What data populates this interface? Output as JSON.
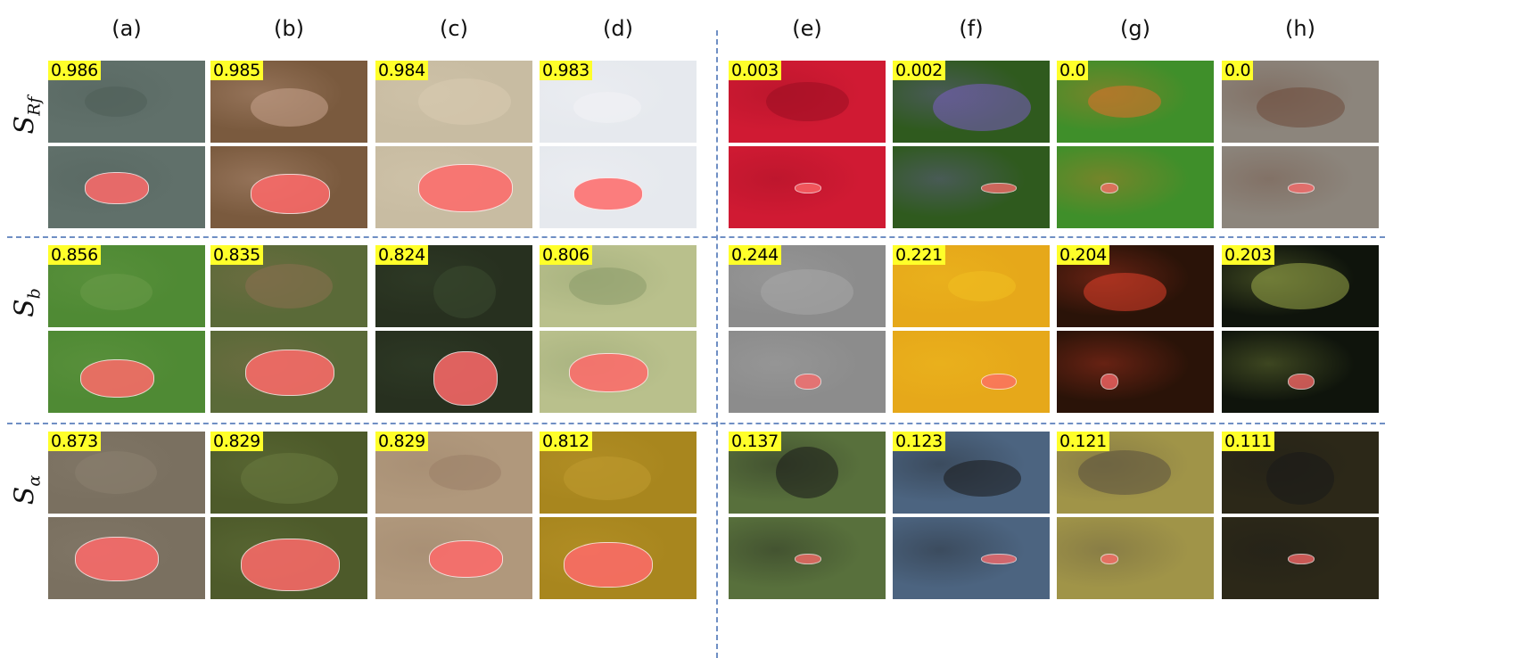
{
  "columns": [
    "(a)",
    "(b)",
    "(c)",
    "(d)",
    "(e)",
    "(f)",
    "(g)",
    "(h)"
  ],
  "rows": [
    {
      "label_main": "S",
      "label_sub": "Rf",
      "scores": [
        "0.986",
        "0.985",
        "0.984",
        "0.983",
        "0.003",
        "0.002",
        "0.0",
        "0.0"
      ]
    },
    {
      "label_main": "S",
      "label_sub": "b",
      "scores": [
        "0.856",
        "0.835",
        "0.824",
        "0.806",
        "0.244",
        "0.221",
        "0.204",
        "0.203"
      ]
    },
    {
      "label_main": "S",
      "label_sub": "α",
      "scores": [
        "0.873",
        "0.829",
        "0.829",
        "0.812",
        "0.137",
        "0.123",
        "0.121",
        "0.111"
      ]
    }
  ],
  "colors": {
    "separator": "#6f8fc4",
    "score_badge": "#ffff2a",
    "mask_overlay": "#ff6a6a",
    "tiles": [
      [
        "#60706a",
        "#7a5a3e",
        "#c8bca2",
        "#e6e9ee",
        "#d01a33",
        "#2f5a1e",
        "#3f8f2a",
        "#8c857c"
      ],
      [
        "#4f8a34",
        "#5a6a38",
        "#27301f",
        "#b9c08c",
        "#8c8c8c",
        "#e6a81a",
        "#2a1308",
        "#0f140c"
      ],
      [
        "#7a7060",
        "#4d5a2a",
        "#b0987c",
        "#a8861e",
        "#58703c",
        "#4c6480",
        "#a09448",
        "#2c2818"
      ]
    ],
    "silhouettes": [
      [
        "#4f5e58",
        "#c9a48e",
        "#d8cbb1",
        "#f2f3f6",
        "#9a0f22",
        "#7b5cc4",
        "#e0702a",
        "#6e4a3a"
      ],
      [
        "#6a9a48",
        "#8a7050",
        "#3a4a30",
        "#8a9a6a",
        "#a8a8a8",
        "#f0c020",
        "#e0402a",
        "#9aaa4a"
      ],
      [
        "#8a8070",
        "#6a7a40",
        "#9a8068",
        "#c09a30",
        "#1a1a1a",
        "#1a1a1a",
        "#5a5040",
        "#1a1a1a"
      ]
    ]
  }
}
